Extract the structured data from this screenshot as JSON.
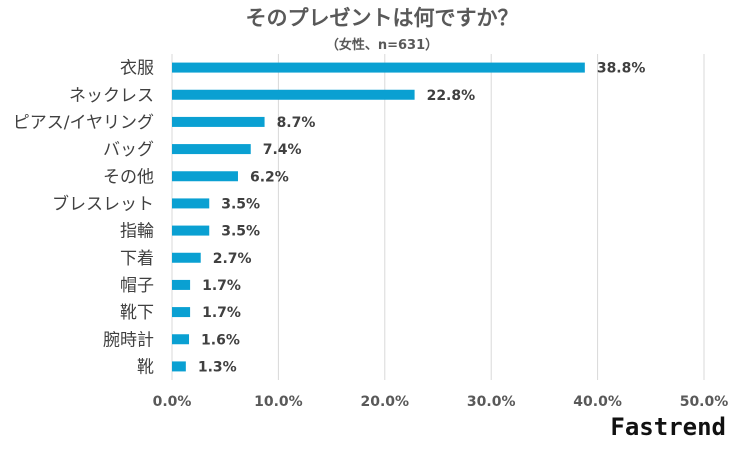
{
  "brand": "Fastrend",
  "chart_data": {
    "type": "bar",
    "orientation": "horizontal",
    "title": "そのプレゼントは何ですか？",
    "subtitle": "（女性、n=631）",
    "xlim": [
      0,
      50
    ],
    "x_ticks": [
      "0.0%",
      "10.0%",
      "20.0%",
      "30.0%",
      "40.0%",
      "50.0%"
    ],
    "grid": true,
    "bar_color": "#0aa0d2",
    "categories": [
      "衣服",
      "ネックレス",
      "ピアス/イヤリング",
      "バッグ",
      "その他",
      "ブレスレット",
      "指輪",
      "下着",
      "帽子",
      "靴下",
      "腕時計",
      "靴"
    ],
    "values": [
      38.8,
      22.8,
      8.7,
      7.4,
      6.2,
      3.5,
      3.5,
      2.7,
      1.7,
      1.7,
      1.6,
      1.3
    ],
    "value_labels": [
      "38.8%",
      "22.8%",
      "8.7%",
      "7.4%",
      "6.2%",
      "3.5%",
      "3.5%",
      "2.7%",
      "1.7%",
      "1.7%",
      "1.6%",
      "1.3%"
    ]
  }
}
